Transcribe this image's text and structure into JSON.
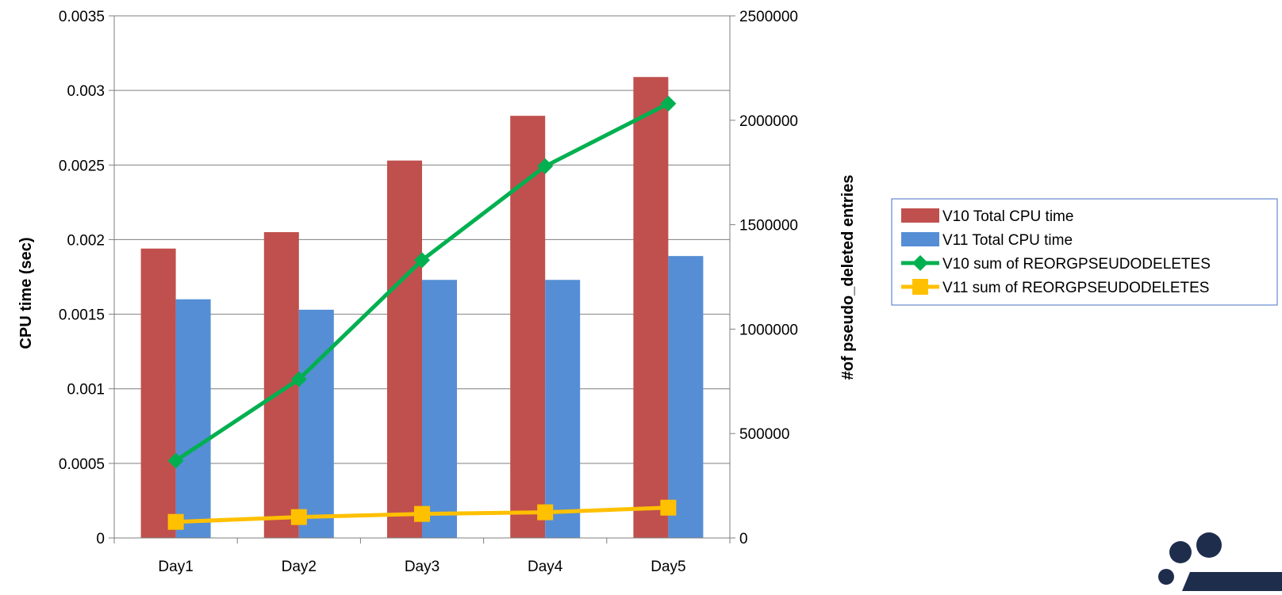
{
  "chart_data": {
    "type": "bar",
    "categories": [
      "Day1",
      "Day2",
      "Day3",
      "Day4",
      "Day5"
    ],
    "series": [
      {
        "name": "V10 Total CPU time",
        "type": "bar",
        "axis": "left",
        "color": "#C0504D",
        "values": [
          0.00194,
          0.00205,
          0.00253,
          0.00283,
          0.00309
        ]
      },
      {
        "name": "V11 Total CPU time",
        "type": "bar",
        "axis": "left",
        "color": "#558ED5",
        "values": [
          0.0016,
          0.00153,
          0.00173,
          0.00173,
          0.00189
        ]
      },
      {
        "name": "V10 sum of REORGPSEUDODELETES",
        "type": "line",
        "marker": "diamond",
        "axis": "right",
        "color": "#00B050",
        "values": [
          370000,
          760000,
          1330000,
          1780000,
          2080000
        ]
      },
      {
        "name": "V11 sum of REORGPSEUDODELETES",
        "type": "line",
        "marker": "square",
        "axis": "right",
        "color": "#FFC000",
        "values": [
          77000,
          100000,
          115000,
          123000,
          145000
        ]
      }
    ],
    "y_left": {
      "label": "CPU time (sec)",
      "min": 0,
      "max": 0.0035,
      "ticks": [
        0,
        0.0005,
        0.001,
        0.0015,
        0.002,
        0.0025,
        0.003,
        0.0035
      ],
      "tick_labels": [
        "0",
        "0.0005",
        "0.001",
        "0.0015",
        "0.002",
        "0.0025",
        "0.003",
        "0.0035"
      ]
    },
    "y_right": {
      "label": "#of pseudo_deleted entries",
      "min": 0,
      "max": 2500000,
      "ticks": [
        0,
        500000,
        1000000,
        1500000,
        2000000,
        2500000
      ],
      "tick_labels": [
        "0",
        "500000",
        "1000000",
        "1500000",
        "2000000",
        "2500000"
      ]
    },
    "xlabel": "",
    "grid": true,
    "legend_position": "right"
  },
  "colors": {
    "gridline": "#7F7F7F",
    "legend_border": "#4472C4",
    "logo": "#1F2D4D"
  }
}
